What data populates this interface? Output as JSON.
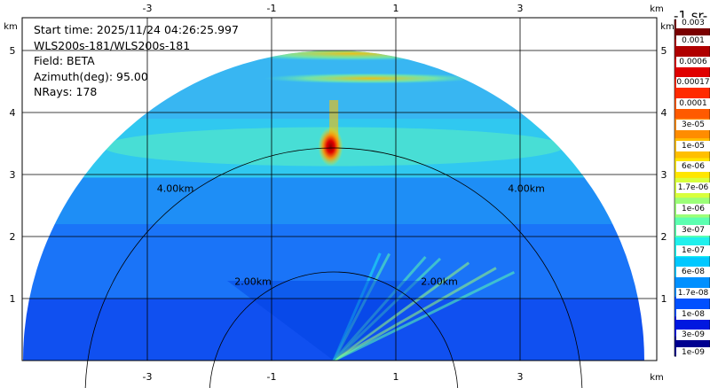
{
  "info": {
    "start_time": "Start time: 2025/11/24 04:26:25.997",
    "instrument": "WLS200s-181/WLS200s-181",
    "field": "Field: BETA",
    "azimuth": "Azimuth(deg): 95.00",
    "nrays": "NRays: 178"
  },
  "colorbar": {
    "units_fragment": "-1 sr-",
    "labels": [
      "0.003",
      "0.001",
      "0.0006",
      "0.00017",
      "0.0001",
      "3e-05",
      "1e-05",
      "6e-06",
      "1.7e-06",
      "1e-06",
      "3e-07",
      "1e-07",
      "6e-08",
      "1.7e-08",
      "1e-08",
      "3e-09",
      "1e-09"
    ],
    "colors": [
      "#7a0000",
      "#b00000",
      "#e00000",
      "#ff2a00",
      "#ff5a00",
      "#ff8c00",
      "#ffbf00",
      "#ffe600",
      "#d8ff3c",
      "#9cff78",
      "#5cffb0",
      "#20f0ec",
      "#00c8ff",
      "#0090ff",
      "#0050ff",
      "#0018e0",
      "#000090"
    ]
  },
  "chart_data": {
    "type": "heatmap",
    "x_unit": "km",
    "y_unit": "km",
    "x_ticks": [
      -3,
      -1,
      1,
      3
    ],
    "y_ticks": [
      1,
      2,
      3,
      4,
      5
    ],
    "x_range": [
      -5.4,
      5.0
    ],
    "y_range": [
      0,
      6.0
    ],
    "range_rings_km": [
      2,
      4
    ],
    "ring_labels": [
      "2.00km",
      "4.00km"
    ],
    "max_range_km": 5.0,
    "rhi_azimuth_deg": 95.0,
    "n_rays": 178,
    "grid": true,
    "features": [
      {
        "type": "cloud_layer",
        "height_km": 4.9,
        "value": "1e-04"
      },
      {
        "type": "cloud_layer",
        "height_km": 4.5,
        "value": "6e-05"
      },
      {
        "type": "hotspot",
        "x_km": -0.05,
        "y_km": 3.45,
        "value": "0.001"
      },
      {
        "type": "aerosol_layer",
        "height_km": 3.5,
        "value": "1e-06"
      }
    ]
  }
}
